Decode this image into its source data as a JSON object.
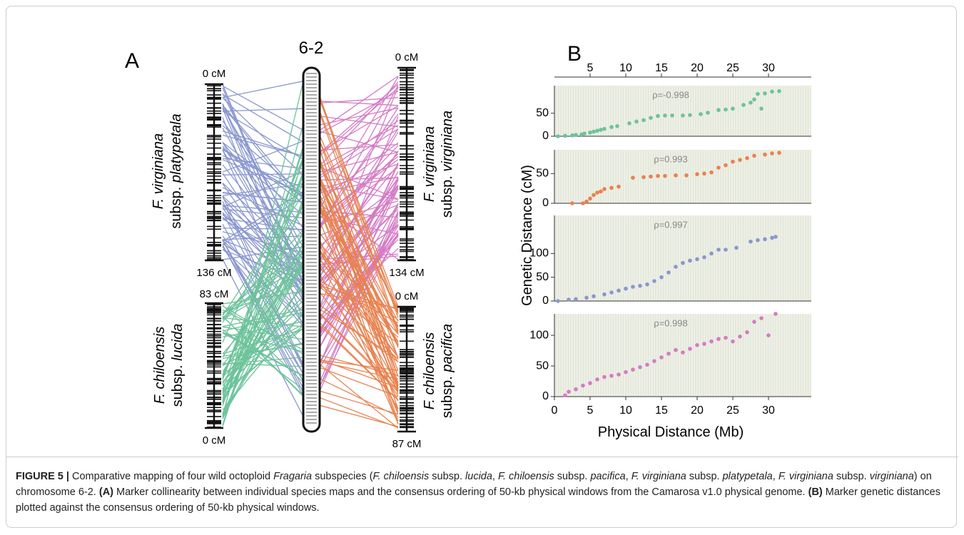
{
  "panel_a": {
    "label": "A",
    "chromosome": "6-2",
    "maps": [
      {
        "genus": "F. virginiana",
        "rank": "subsp.",
        "name": "platypetala",
        "top_label": "0 cM",
        "bottom_label": "136 cM"
      },
      {
        "genus": "F. chiloensis",
        "rank": "subsp.",
        "name": "lucida",
        "top_label": "83 cM",
        "bottom_label": "0 cM"
      },
      {
        "genus": "F. virginiana",
        "rank": "subsp.",
        "name": "virginiana",
        "top_label": "0 cM",
        "bottom_label": "134 cM"
      },
      {
        "genus": "F. chiloensis",
        "rank": "subsp.",
        "name": "pacifica",
        "top_label": "0 cM",
        "bottom_label": "87 cM"
      }
    ]
  },
  "panel_b": {
    "label": "B",
    "xlabel": "Physical Distance (Mb)",
    "ylabel": "Genetic Distance (cM)"
  },
  "chart_data": [
    {
      "type": "scatter",
      "annotation": "ρ=-0.998",
      "xlim": [
        0,
        36
      ],
      "ylim": [
        0,
        110
      ],
      "yticks": [
        0,
        50
      ],
      "xticks": [
        5,
        10,
        15,
        20,
        25,
        30
      ],
      "series": [
        {
          "color": "#6dc39a",
          "x": [
            0.5,
            1.5,
            2.5,
            3,
            3.8,
            4.2,
            5,
            5.5,
            6,
            6.5,
            7,
            8,
            8.8,
            10.5,
            11.5,
            12.5,
            13.5,
            14.5,
            15.5,
            16.5,
            18,
            19,
            20.5,
            21.5,
            23,
            24,
            25,
            26.5,
            27.5,
            28,
            28.5,
            29,
            29.5,
            30.5,
            31.5
          ],
          "values": [
            0,
            1,
            2,
            3,
            4,
            6,
            8,
            10,
            12,
            14,
            16,
            20,
            22,
            28,
            32,
            35,
            40,
            44,
            45,
            45,
            45,
            46,
            48,
            51,
            57,
            58,
            60,
            68,
            73,
            80,
            92,
            60,
            93,
            97,
            98
          ]
        }
      ]
    },
    {
      "type": "scatter",
      "annotation": "ρ=0.993",
      "xlim": [
        0,
        36
      ],
      "ylim": [
        0,
        90
      ],
      "yticks": [
        0,
        50
      ],
      "series": [
        {
          "color": "#e8824f",
          "x": [
            2.5,
            4,
            4.5,
            5,
            5.5,
            6,
            6.5,
            7,
            8,
            9,
            11,
            12.5,
            13.5,
            14.5,
            15.5,
            17,
            18.5,
            20,
            21,
            22,
            23,
            24,
            25,
            26,
            27,
            28,
            29.5,
            30.5,
            31.5
          ],
          "values": [
            0,
            0,
            3,
            8,
            14,
            18,
            20,
            24,
            26,
            28,
            43,
            44,
            45,
            46,
            46,
            47,
            47,
            49,
            50,
            52,
            60,
            64,
            70,
            73,
            76,
            80,
            82,
            84,
            85
          ]
        }
      ]
    },
    {
      "type": "scatter",
      "annotation": "ρ=0.997",
      "xlim": [
        0,
        36
      ],
      "ylim": [
        0,
        180
      ],
      "yticks": [
        0,
        50,
        100
      ],
      "series": [
        {
          "color": "#8a97cf",
          "x": [
            0.5,
            2,
            3,
            4.5,
            5.5,
            7,
            8,
            9,
            10,
            11,
            12,
            13,
            14,
            15,
            16,
            17,
            18,
            19,
            20,
            21,
            22,
            23,
            24,
            25.5,
            27.5,
            28.5,
            29.5,
            30.5,
            31
          ],
          "values": [
            0,
            3,
            4,
            7,
            10,
            14,
            18,
            22,
            26,
            30,
            32,
            35,
            42,
            50,
            60,
            72,
            80,
            85,
            88,
            92,
            100,
            108,
            108,
            112,
            125,
            128,
            130,
            133,
            135
          ]
        }
      ]
    },
    {
      "type": "scatter",
      "annotation": "ρ=0.998",
      "xlim": [
        0,
        36
      ],
      "ylim": [
        0,
        135
      ],
      "yticks": [
        0,
        50,
        100
      ],
      "xticks": [
        0,
        5,
        10,
        15,
        20,
        25,
        30
      ],
      "series": [
        {
          "color": "#d47bc5",
          "x": [
            1.5,
            2,
            3,
            4,
            5,
            6,
            7,
            8,
            9,
            10,
            11,
            12,
            13,
            14,
            15,
            16,
            17,
            18,
            19,
            20,
            21,
            22,
            23,
            24,
            25,
            26,
            27,
            28,
            29,
            30,
            31
          ],
          "values": [
            2,
            8,
            12,
            18,
            22,
            28,
            32,
            34,
            36,
            40,
            44,
            48,
            52,
            58,
            64,
            70,
            76,
            72,
            78,
            84,
            86,
            90,
            94,
            96,
            90,
            98,
            105,
            122,
            128,
            100,
            135
          ]
        }
      ]
    }
  ],
  "caption": [
    {
      "text": "FIGURE 5 | ",
      "style": "bold"
    },
    {
      "text": "Comparative mapping of four wild octoploid ",
      "style": "normal"
    },
    {
      "text": "Fragaria",
      "style": "italic"
    },
    {
      "text": " subspecies (",
      "style": "normal"
    },
    {
      "text": "F. chiloensis",
      "style": "italic"
    },
    {
      "text": " subsp. ",
      "style": "normal"
    },
    {
      "text": "lucida",
      "style": "italic"
    },
    {
      "text": ", ",
      "style": "normal"
    },
    {
      "text": "F. chiloensis",
      "style": "italic"
    },
    {
      "text": " subsp. ",
      "style": "normal"
    },
    {
      "text": "pacifica",
      "style": "italic"
    },
    {
      "text": ", ",
      "style": "normal"
    },
    {
      "text": "F. virginiana",
      "style": "italic"
    },
    {
      "text": " subsp. ",
      "style": "normal"
    },
    {
      "text": "platypetala",
      "style": "italic"
    },
    {
      "text": ", ",
      "style": "normal"
    },
    {
      "text": "F. virginiana",
      "style": "italic"
    },
    {
      "text": " subsp. ",
      "style": "normal"
    },
    {
      "text": "virginiana",
      "style": "italic"
    },
    {
      "text": ") on chromosome 6-2. ",
      "style": "normal"
    },
    {
      "text": "(A)",
      "style": "bold"
    },
    {
      "text": " Marker collinearity between individual species maps and the consensus ordering of 50-kb physical windows from the Camarosa v1.0 physical genome. ",
      "style": "normal"
    },
    {
      "text": "(B)",
      "style": "bold"
    },
    {
      "text": " Marker genetic distances plotted against the consensus ordering of 50-kb physical windows.",
      "style": "normal"
    }
  ]
}
